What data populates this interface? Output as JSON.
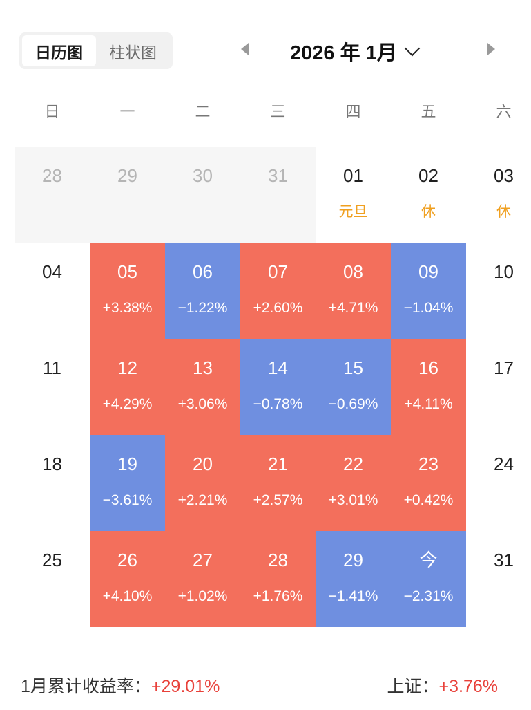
{
  "view_toggle": {
    "options": [
      "日历图",
      "柱状图"
    ],
    "active_index": 0
  },
  "header": {
    "title": "2026 年 1月"
  },
  "weekdays": [
    "日",
    "一",
    "二",
    "三",
    "四",
    "五",
    "六"
  ],
  "colors": {
    "up": "#f36f5c",
    "down": "#6f8fe0",
    "holiday": "#f0a020",
    "footer_value": "#e8413a"
  },
  "weeks": [
    [
      {
        "day": "28",
        "type": "prev"
      },
      {
        "day": "29",
        "type": "prev"
      },
      {
        "day": "30",
        "type": "prev"
      },
      {
        "day": "31",
        "type": "prev"
      },
      {
        "day": "01",
        "type": "holiday",
        "sub": "元旦"
      },
      {
        "day": "02",
        "type": "holiday",
        "sub": "休"
      },
      {
        "day": "03",
        "type": "holiday",
        "sub": "休"
      }
    ],
    [
      {
        "day": "04",
        "type": "plain"
      },
      {
        "day": "05",
        "type": "up",
        "sub": "+3.38%"
      },
      {
        "day": "06",
        "type": "down",
        "sub": "−1.22%"
      },
      {
        "day": "07",
        "type": "up",
        "sub": "+2.60%"
      },
      {
        "day": "08",
        "type": "up",
        "sub": "+4.71%"
      },
      {
        "day": "09",
        "type": "down",
        "sub": "−1.04%"
      },
      {
        "day": "10",
        "type": "plain"
      }
    ],
    [
      {
        "day": "11",
        "type": "plain"
      },
      {
        "day": "12",
        "type": "up",
        "sub": "+4.29%"
      },
      {
        "day": "13",
        "type": "up",
        "sub": "+3.06%"
      },
      {
        "day": "14",
        "type": "down",
        "sub": "−0.78%"
      },
      {
        "day": "15",
        "type": "down",
        "sub": "−0.69%"
      },
      {
        "day": "16",
        "type": "up",
        "sub": "+4.11%"
      },
      {
        "day": "17",
        "type": "plain"
      }
    ],
    [
      {
        "day": "18",
        "type": "plain"
      },
      {
        "day": "19",
        "type": "down",
        "sub": "−3.61%"
      },
      {
        "day": "20",
        "type": "up",
        "sub": "+2.21%"
      },
      {
        "day": "21",
        "type": "up",
        "sub": "+2.57%"
      },
      {
        "day": "22",
        "type": "up",
        "sub": "+3.01%"
      },
      {
        "day": "23",
        "type": "up",
        "sub": "+0.42%"
      },
      {
        "day": "24",
        "type": "plain"
      }
    ],
    [
      {
        "day": "25",
        "type": "plain"
      },
      {
        "day": "26",
        "type": "up",
        "sub": "+4.10%"
      },
      {
        "day": "27",
        "type": "up",
        "sub": "+1.02%"
      },
      {
        "day": "28",
        "type": "up",
        "sub": "+1.76%"
      },
      {
        "day": "29",
        "type": "down",
        "sub": "−1.41%"
      },
      {
        "day": "今",
        "type": "down",
        "sub": "−2.31%"
      },
      {
        "day": "31",
        "type": "plain"
      }
    ]
  ],
  "footer": {
    "cumulative_label": "1月累计收益率：",
    "cumulative_value": "+29.01%",
    "index_label": "上证：",
    "index_value": "+3.76%"
  }
}
